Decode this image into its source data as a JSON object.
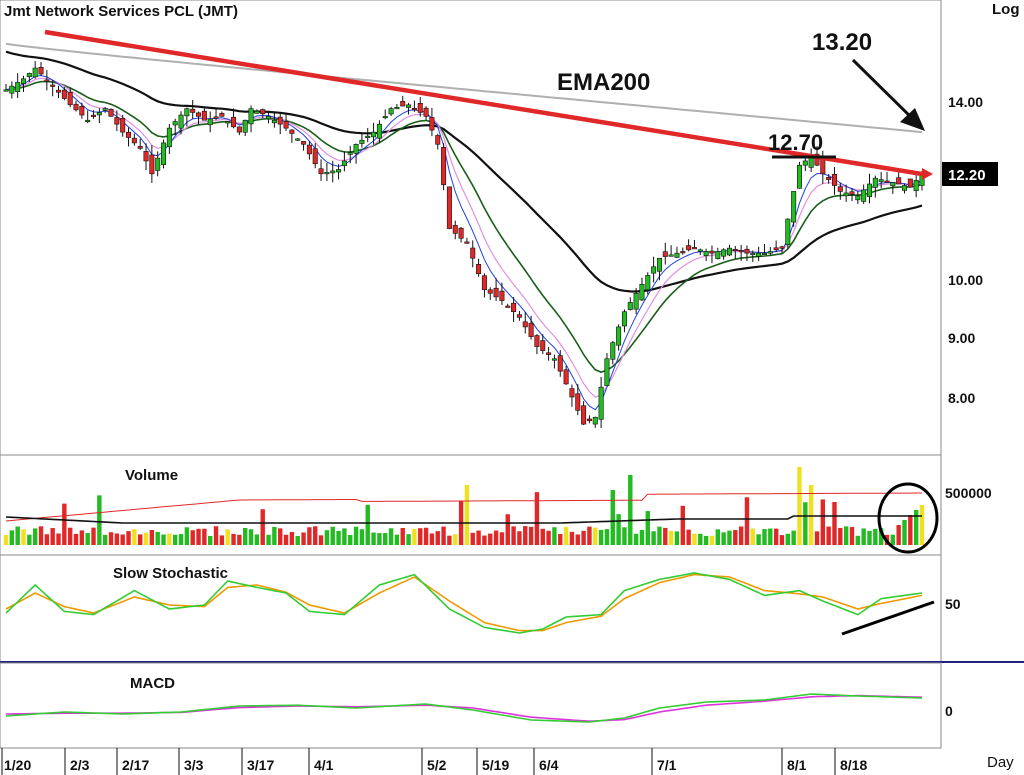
{
  "title": "Jmt  Network  Services  PCL  (JMT)",
  "scale_label": "Log",
  "period_label": "Day",
  "annotations": {
    "ema200": "EMA200",
    "target": "13.20",
    "resistance": "12.70",
    "last_price": "12.20"
  },
  "colors": {
    "up": "#22bb22",
    "down": "#e02828",
    "neutral": "#f0e020",
    "trendline": "#e02828",
    "ema200": "#b0b0b0",
    "ma_black": "#111111",
    "ma_green": "#1a5e1a",
    "ma_pink": "#e090e0",
    "ma_blue": "#2040e0",
    "stoch_fast": "#33cc33",
    "stoch_slow": "#ee9900",
    "macd_line": "#33cc33",
    "macd_signal": "#dd33dd"
  },
  "x_labels": [
    "1/20",
    "2/3",
    "2/17",
    "3/3",
    "3/17",
    "4/1",
    "5/2",
    "5/19",
    "6/4",
    "7/1",
    "8/1",
    "8/18"
  ],
  "chart_data": [
    {
      "type": "candlestick",
      "title": "Jmt  Network  Services  PCL  (JMT)",
      "y_scale": "log",
      "y_ticks": [
        "14.00",
        "10.00",
        "9.00",
        "8.00"
      ],
      "ylim": [
        7.3,
        16.2
      ],
      "series_anchor_close": [
        [
          0,
          14.3
        ],
        [
          3,
          14.6
        ],
        [
          5,
          14.9
        ],
        [
          8,
          14.4
        ],
        [
          11,
          13.9
        ],
        [
          14,
          13.5
        ],
        [
          17,
          13.8
        ],
        [
          20,
          13.2
        ],
        [
          23,
          12.8
        ],
        [
          25,
          12.2
        ],
        [
          28,
          13.3
        ],
        [
          31,
          13.8
        ],
        [
          34,
          13.5
        ],
        [
          37,
          13.6
        ],
        [
          40,
          13.2
        ],
        [
          42,
          13.8
        ],
        [
          45,
          13.6
        ],
        [
          48,
          13.3
        ],
        [
          51,
          12.9
        ],
        [
          54,
          12.2
        ],
        [
          57,
          12.3
        ],
        [
          60,
          12.9
        ],
        [
          63,
          13.2
        ],
        [
          66,
          13.8
        ],
        [
          69,
          13.9
        ],
        [
          72,
          13.6
        ],
        [
          74,
          12.9
        ],
        [
          76,
          11.0
        ],
        [
          79,
          10.7
        ],
        [
          82,
          9.8
        ],
        [
          85,
          9.6
        ],
        [
          88,
          9.3
        ],
        [
          91,
          8.8
        ],
        [
          94,
          8.6
        ],
        [
          97,
          8.0
        ],
        [
          99,
          7.6
        ],
        [
          101,
          7.7
        ],
        [
          103,
          8.6
        ],
        [
          106,
          9.4
        ],
        [
          109,
          9.9
        ],
        [
          112,
          10.4
        ],
        [
          115,
          10.5
        ],
        [
          118,
          10.6
        ],
        [
          121,
          10.5
        ],
        [
          124,
          10.6
        ],
        [
          127,
          10.5
        ],
        [
          130,
          10.5
        ],
        [
          133,
          10.6
        ],
        [
          136,
          12.4
        ],
        [
          138,
          12.6
        ],
        [
          140,
          12.2
        ],
        [
          143,
          11.8
        ],
        [
          146,
          11.7
        ],
        [
          149,
          12.1
        ],
        [
          152,
          12.0
        ],
        [
          155,
          11.9
        ],
        [
          157,
          12.2
        ]
      ],
      "moving_averages": [
        "EMA200",
        "black",
        "green",
        "pink",
        "blue"
      ]
    },
    {
      "type": "bar",
      "title": "Volume",
      "y_ticks": [
        "500000"
      ]
    },
    {
      "type": "line",
      "title": "Slow  Stochastic",
      "y_ticks": [
        "50"
      ],
      "series": [
        {
          "values_anchor": [
            [
              0,
              40
            ],
            [
              5,
              75
            ],
            [
              10,
              42
            ],
            [
              15,
              38
            ],
            [
              22,
              68
            ],
            [
              28,
              45
            ],
            [
              34,
              50
            ],
            [
              38,
              80
            ],
            [
              43,
              72
            ],
            [
              48,
              65
            ],
            [
              52,
              42
            ],
            [
              58,
              38
            ],
            [
              64,
              75
            ],
            [
              70,
              88
            ],
            [
              76,
              45
            ],
            [
              82,
              22
            ],
            [
              88,
              15
            ],
            [
              92,
              20
            ],
            [
              96,
              35
            ],
            [
              102,
              38
            ],
            [
              106,
              68
            ],
            [
              112,
              82
            ],
            [
              118,
              90
            ],
            [
              124,
              82
            ],
            [
              130,
              62
            ],
            [
              136,
              68
            ],
            [
              140,
              55
            ],
            [
              146,
              38
            ],
            [
              150,
              58
            ],
            [
              157,
              65
            ]
          ]
        },
        {
          "values_anchor": [
            [
              0,
              45
            ],
            [
              5,
              65
            ],
            [
              10,
              48
            ],
            [
              15,
              40
            ],
            [
              22,
              60
            ],
            [
              28,
              50
            ],
            [
              34,
              48
            ],
            [
              38,
              72
            ],
            [
              43,
              75
            ],
            [
              48,
              66
            ],
            [
              52,
              50
            ],
            [
              58,
              40
            ],
            [
              64,
              65
            ],
            [
              70,
              85
            ],
            [
              76,
              55
            ],
            [
              82,
              28
            ],
            [
              88,
              18
            ],
            [
              92,
              18
            ],
            [
              96,
              28
            ],
            [
              102,
              36
            ],
            [
              106,
              58
            ],
            [
              112,
              78
            ],
            [
              118,
              88
            ],
            [
              124,
              85
            ],
            [
              130,
              68
            ],
            [
              136,
              64
            ],
            [
              140,
              60
            ],
            [
              146,
              45
            ],
            [
              150,
              52
            ],
            [
              157,
              62
            ]
          ]
        }
      ]
    },
    {
      "type": "line",
      "title": "MACD",
      "y_ticks": [
        "0"
      ],
      "series": [
        {
          "values_anchor": [
            [
              0,
              -0.15
            ],
            [
              10,
              -0.05
            ],
            [
              20,
              -0.1
            ],
            [
              30,
              -0.05
            ],
            [
              40,
              0.1
            ],
            [
              50,
              0.12
            ],
            [
              60,
              0.05
            ],
            [
              72,
              0.15
            ],
            [
              80,
              0.0
            ],
            [
              90,
              -0.25
            ],
            [
              100,
              -0.3
            ],
            [
              106,
              -0.2
            ],
            [
              112,
              0.05
            ],
            [
              120,
              0.2
            ],
            [
              130,
              0.25
            ],
            [
              138,
              0.4
            ],
            [
              146,
              0.35
            ],
            [
              157,
              0.3
            ]
          ]
        },
        {
          "values_anchor": [
            [
              0,
              -0.1
            ],
            [
              10,
              -0.08
            ],
            [
              20,
              -0.08
            ],
            [
              30,
              -0.06
            ],
            [
              40,
              0.06
            ],
            [
              50,
              0.1
            ],
            [
              60,
              0.08
            ],
            [
              72,
              0.12
            ],
            [
              80,
              0.05
            ],
            [
              90,
              -0.18
            ],
            [
              100,
              -0.28
            ],
            [
              106,
              -0.24
            ],
            [
              112,
              -0.05
            ],
            [
              120,
              0.12
            ],
            [
              130,
              0.22
            ],
            [
              138,
              0.33
            ],
            [
              146,
              0.36
            ],
            [
              157,
              0.32
            ]
          ]
        }
      ]
    }
  ]
}
